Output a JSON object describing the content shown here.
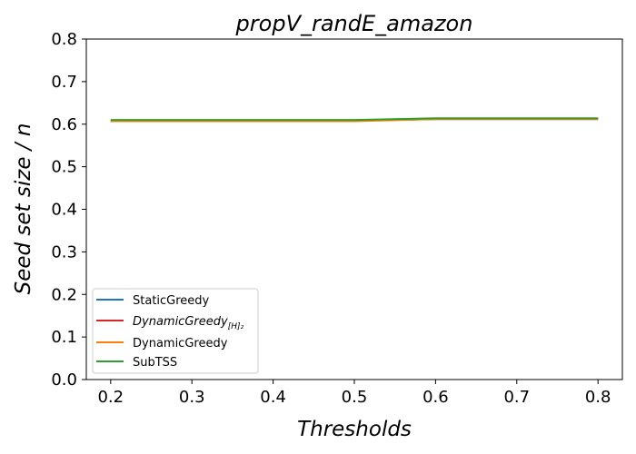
{
  "chart_data": {
    "type": "line",
    "title": "propV_randE_amazon",
    "xlabel": "Thresholds",
    "ylabel": "Seed set size / n",
    "x": [
      0.2,
      0.3,
      0.4,
      0.5,
      0.6,
      0.7,
      0.8
    ],
    "x_tick_labels": [
      "0.2",
      "0.3",
      "0.4",
      "0.5",
      "0.6",
      "0.7",
      "0.8"
    ],
    "y_tick_labels": [
      "0.0",
      "0.1",
      "0.2",
      "0.3",
      "0.4",
      "0.5",
      "0.6",
      "0.7",
      "0.8"
    ],
    "xlim": [
      0.17,
      0.83
    ],
    "ylim": [
      0.0,
      0.8
    ],
    "grid": false,
    "legend_position": "lower-left",
    "series": [
      {
        "name": "StaticGreedy",
        "color": "#1f77b4",
        "values": [
          0.607,
          0.607,
          0.608,
          0.608,
          0.612,
          0.612,
          0.612
        ]
      },
      {
        "name": "DynamicGreedy",
        "subscript": "[H]₂",
        "italic": true,
        "color": "#d62728",
        "values": [
          0.607,
          0.607,
          0.608,
          0.608,
          0.612,
          0.612,
          0.612
        ]
      },
      {
        "name": "DynamicGreedy",
        "color": "#ff7f0e",
        "values": [
          0.607,
          0.607,
          0.607,
          0.607,
          0.612,
          0.612,
          0.612
        ]
      },
      {
        "name": "SubTSS",
        "color": "#2ca02c",
        "values": [
          0.61,
          0.61,
          0.61,
          0.61,
          0.614,
          0.614,
          0.614
        ]
      }
    ]
  }
}
